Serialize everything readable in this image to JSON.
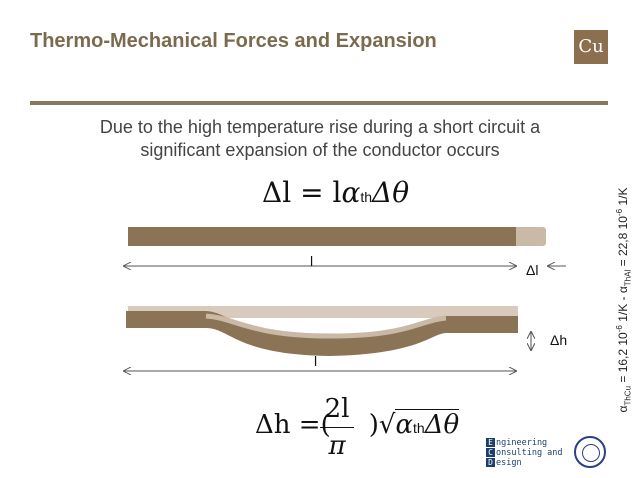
{
  "slide": {
    "title": "Thermo-Mechanical Forces and Expansion",
    "logo_text": "Cu",
    "intro_line1": "Due to the high temperature rise during a short circuit a",
    "intro_line2": "significant expansion of the conductor occurs",
    "colors": {
      "title": "#7b6a4e",
      "rule": "#8a7a5a",
      "conductor": "#8b7355",
      "expansion": "#c9b9a6"
    }
  },
  "formula1": {
    "lhs": "Δl",
    "eq": "=",
    "l": "l",
    "alpha": "α",
    "sub": "th",
    "delta_theta": "Δθ"
  },
  "diagram1": {
    "length_label": "l",
    "delta_l_label": "Δl"
  },
  "diagram2": {
    "length_label": "l",
    "delta_h_label": "Δh"
  },
  "formula2": {
    "lhs": "Δh",
    "eq": "=",
    "open": "(",
    "numerator": "2l",
    "denominator": "π",
    "close": ")",
    "alpha": "α",
    "sub": "th",
    "delta_theta": "Δθ"
  },
  "coefficients": {
    "text_cu_a": "α",
    "text_cu_sub": "ThCu",
    "text_cu_b": " = 16,2 10",
    "exp1": "-6",
    "unit1": " 1/K - ",
    "text_al_a": "α",
    "text_al_sub": "ThAl",
    "text_al_b": " = 22,8 10",
    "exp2": "-6",
    "unit2": " 1/K"
  },
  "footer_logo": {
    "line1": "ngineering",
    "line2": "onsulting and",
    "line3": "esign",
    "letter1": "E",
    "letter2": "C",
    "letter3": "D"
  }
}
